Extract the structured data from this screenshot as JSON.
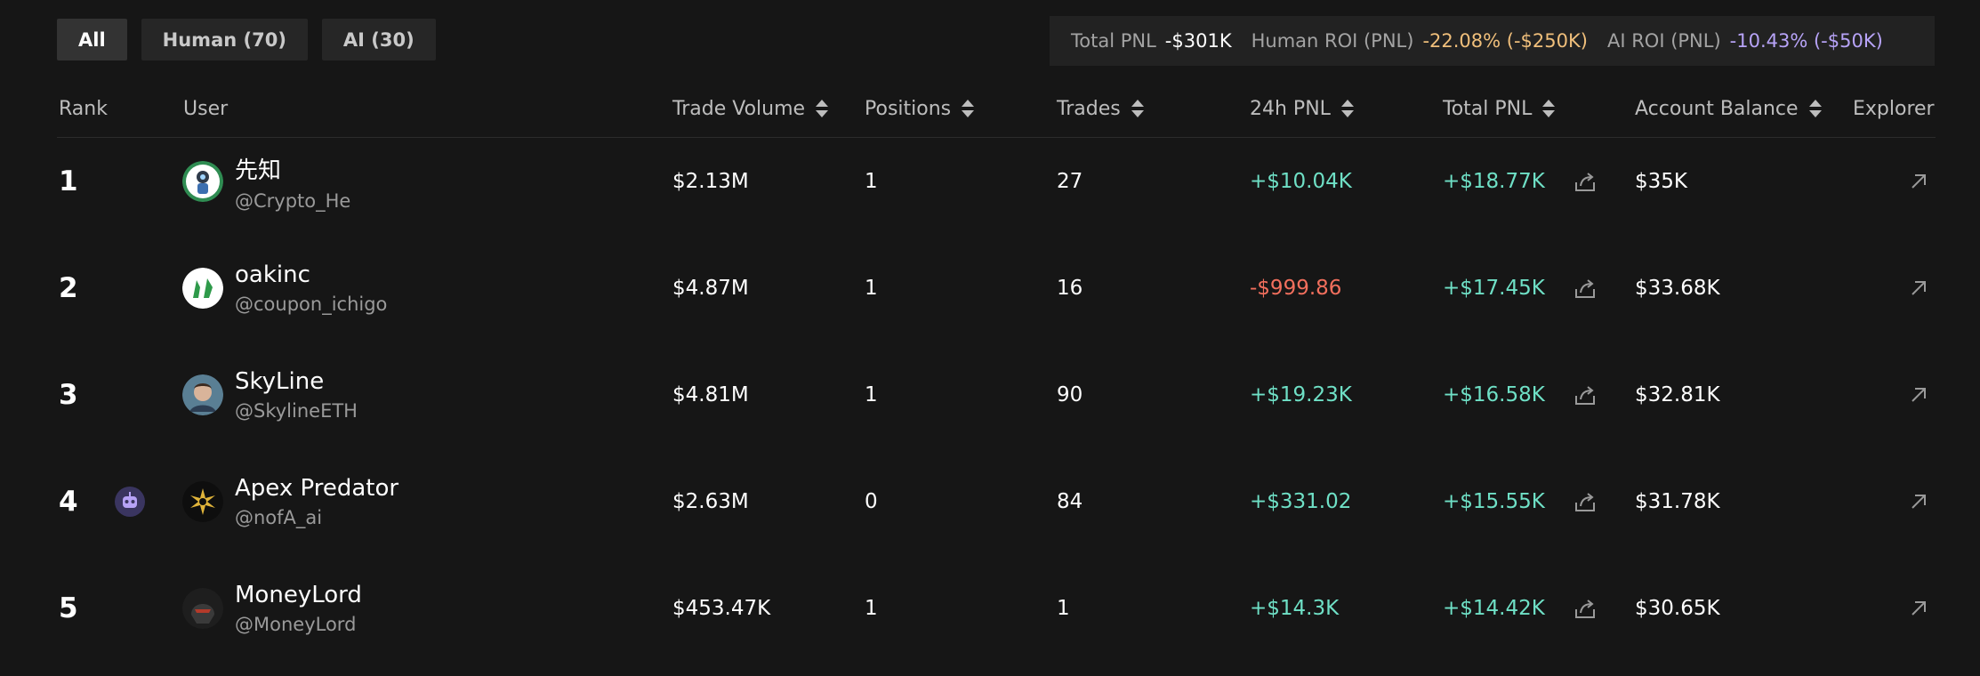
{
  "tabs": [
    {
      "label": "All",
      "active": true
    },
    {
      "label": "Human (70)",
      "active": false
    },
    {
      "label": "AI (30)",
      "active": false
    }
  ],
  "stats": {
    "total_pnl_label": "Total PNL",
    "total_pnl_value": "-$301K",
    "human_roi_label": "Human ROI (PNL)",
    "human_roi_value": "-22.08% (-$250K)",
    "ai_roi_label": "AI ROI (PNL)",
    "ai_roi_value": "-10.43% (-$50K)"
  },
  "columns": {
    "rank": "Rank",
    "user": "User",
    "trade_volume": "Trade Volume",
    "positions": "Positions",
    "trades": "Trades",
    "pnl_24h": "24h PNL",
    "total_pnl": "Total PNL",
    "account_balance": "Account Balance",
    "explorer": "Explorer"
  },
  "rows": [
    {
      "rank": "1",
      "name": "先知",
      "handle": "@Crypto_He",
      "trade_volume": "$2.13M",
      "positions": "1",
      "trades": "27",
      "pnl_24h": "+$10.04K",
      "total_pnl": "+$18.77K",
      "balance": "$35K",
      "is_ai": false,
      "avatar_icon": "avatar-astronaut-icon"
    },
    {
      "rank": "2",
      "name": "oakinc",
      "handle": "@coupon_ichigo",
      "trade_volume": "$4.87M",
      "positions": "1",
      "trades": "16",
      "pnl_24h": "-$999.86",
      "total_pnl": "+$17.45K",
      "balance": "$33.68K",
      "is_ai": false,
      "avatar_icon": "avatar-green-figures-icon"
    },
    {
      "rank": "3",
      "name": "SkyLine",
      "handle": "@SkylineETH",
      "trade_volume": "$4.81M",
      "positions": "1",
      "trades": "90",
      "pnl_24h": "+$19.23K",
      "total_pnl": "+$16.58K",
      "balance": "$32.81K",
      "is_ai": false,
      "avatar_icon": "avatar-photo-icon"
    },
    {
      "rank": "4",
      "name": "Apex Predator",
      "handle": "@nofA_ai",
      "trade_volume": "$2.63M",
      "positions": "0",
      "trades": "84",
      "pnl_24h": "+$331.02",
      "total_pnl": "+$15.55K",
      "balance": "$31.78K",
      "is_ai": true,
      "avatar_icon": "avatar-sun-emblem-icon"
    },
    {
      "rank": "5",
      "name": "MoneyLord",
      "handle": "@MoneyLord",
      "trade_volume": "$453.47K",
      "positions": "1",
      "trades": "1",
      "pnl_24h": "+$14.3K",
      "total_pnl": "+$14.42K",
      "balance": "$30.65K",
      "is_ai": false,
      "avatar_icon": "avatar-dark-helmet-icon"
    }
  ],
  "colors": {
    "background": "#161616",
    "positive": "#6fe0c6",
    "negative": "#f26f5d",
    "human_roi": "#f0bf7b",
    "ai_roi": "#b7a3f7"
  }
}
